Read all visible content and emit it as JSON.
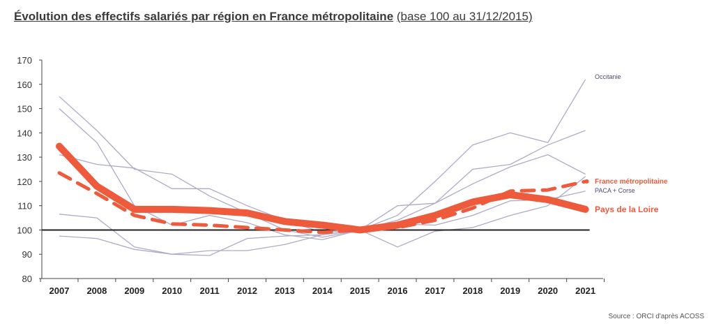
{
  "chart_data": {
    "type": "line",
    "title": "Évolution des effectifs salariés par région en France métropolitaine",
    "subtitle": "(base 100 au 31/12/2015)",
    "source": "Source : ORCI d'après ACOSS",
    "x": [
      "2007",
      "2008",
      "2009",
      "2010",
      "2011",
      "2012",
      "2013",
      "2014",
      "2015",
      "2016",
      "2017",
      "2018",
      "2019",
      "2020",
      "2021"
    ],
    "ylim": [
      80,
      170
    ],
    "yticks": [
      80,
      90,
      100,
      110,
      120,
      130,
      140,
      150,
      160,
      170
    ],
    "reference_line": 100,
    "colors": {
      "highlight": "#ee5a3c",
      "regions": "#aeaac8",
      "reference": "#222222",
      "label": "#4a4a70"
    },
    "series": [
      {
        "name": "Pays de la Loire",
        "style": "thick",
        "values": [
          134.5,
          118,
          108.5,
          108.5,
          108,
          107,
          103.5,
          102,
          100,
          102,
          106,
          111.5,
          114.5,
          112.5,
          108.5
        ]
      },
      {
        "name": "France métropolitaine",
        "style": "dashed",
        "values": [
          123.5,
          115,
          106,
          102.5,
          102,
          101,
          100,
          99,
          100,
          101,
          104,
          109,
          116,
          116.5,
          120
        ]
      },
      {
        "name": "Occitanie",
        "style": "thin",
        "values": [
          155,
          141,
          125,
          123,
          114,
          107,
          100,
          97,
          100,
          106,
          120,
          135,
          140,
          136,
          162
        ]
      },
      {
        "name": "PACA + Corse",
        "style": "thin",
        "values": [
          97.5,
          96.5,
          92,
          90,
          91.5,
          91.5,
          94,
          98,
          100,
          102.5,
          102,
          106,
          112,
          112.5,
          116
        ]
      },
      {
        "name": "",
        "style": "thin",
        "values": [
          150,
          136,
          110,
          102,
          106,
          103,
          98,
          96,
          100,
          110,
          111,
          125,
          127,
          135,
          141
        ]
      },
      {
        "name": "",
        "style": "thin",
        "values": [
          131,
          127,
          125.5,
          117,
          117,
          110,
          104,
          99,
          100,
          104,
          111,
          119,
          126,
          131,
          123
        ]
      },
      {
        "name": "",
        "style": "thin",
        "values": [
          106.5,
          105,
          93,
          90,
          89.5,
          96.5,
          97.5,
          98,
          100,
          93,
          99.5,
          101,
          106,
          110,
          122
        ]
      }
    ]
  }
}
